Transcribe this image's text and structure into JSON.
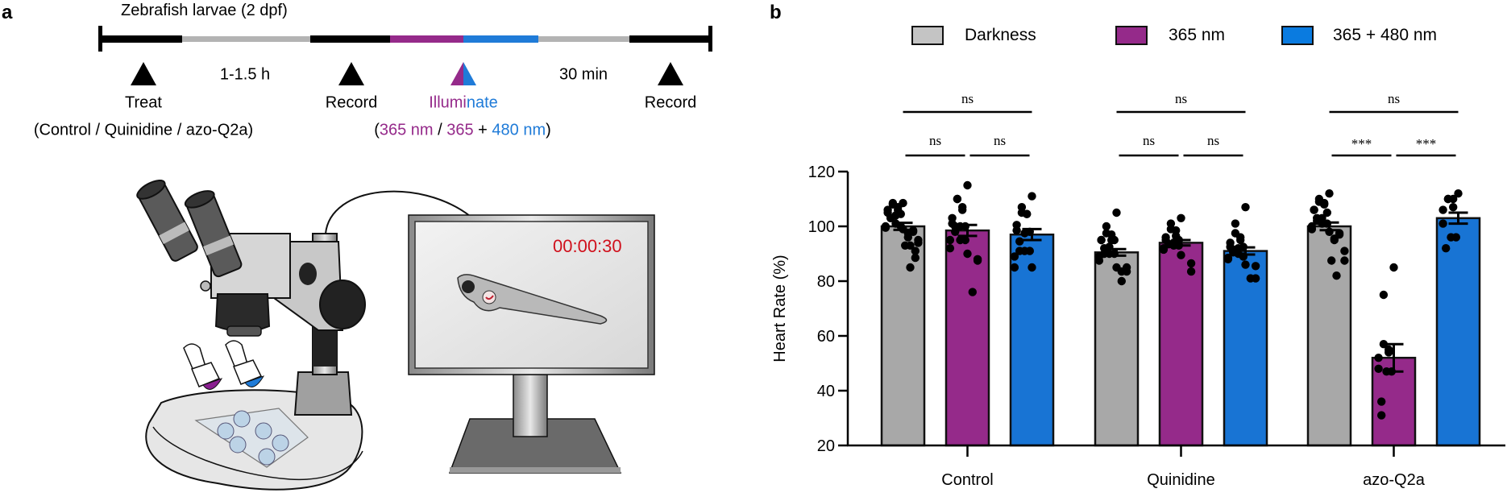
{
  "panel_a": {
    "label": "a",
    "title": "Zebrafish larvae (2 dpf)",
    "timeline_colors": {
      "black": "#000000",
      "gray": "#b3b3b3",
      "purple": "#952a8a",
      "blue": "#1f7bd8"
    },
    "duration_1": "1-1.5 h",
    "duration_2": "30 min",
    "step_treat": "Treat",
    "step_record_1": "Record",
    "step_illuminate_a": "Illumi",
    "step_illuminate_b": "nate",
    "step_record_2": "Record",
    "treat_detail": "(Control / Quinidine / azo-Q2a)",
    "illum_detail": {
      "open": "(",
      "p1": "365 nm",
      "sep": " / ",
      "p2": "365",
      "plus": " + ",
      "p3": "480 nm",
      "close": ")"
    },
    "monitor_timer": "00:00:30",
    "timer_color": "#d0101c"
  },
  "panel_b": {
    "label": "b"
  },
  "chart_data": {
    "type": "bar",
    "ylabel": "Heart Rate (%)",
    "ylim": [
      20,
      120
    ],
    "yticks": [
      "20",
      "40",
      "60",
      "80",
      "100",
      "120"
    ],
    "categories": [
      "Control",
      "Quinidine",
      "azo-Q2a"
    ],
    "legend_position": "top",
    "series": [
      {
        "name": "Darkness",
        "color": "#a8a8a8",
        "legend_color": "#c4c4c4",
        "means": [
          100,
          90.5,
          100
        ],
        "sem": [
          1.3,
          1.2,
          1.4
        ],
        "points": [
          [
            108.5,
            108.5,
            108,
            107,
            106,
            106,
            105,
            104.5,
            104,
            103,
            103,
            101,
            100,
            100,
            99.5,
            99,
            98.5,
            98,
            97.5,
            96,
            95,
            94,
            93,
            93,
            91,
            88.5,
            85
          ],
          [
            105,
            100,
            97.5,
            97,
            95,
            95,
            95,
            95,
            92.5,
            92,
            90,
            90,
            90,
            89,
            87.5,
            85,
            85,
            83.5,
            83.5,
            80
          ],
          [
            112,
            110,
            109,
            108.5,
            108,
            106,
            106,
            105,
            103,
            103,
            102,
            101,
            101,
            100,
            99,
            98,
            97.5,
            97,
            95.5,
            95,
            91,
            87.5,
            87.5,
            82
          ]
        ]
      },
      {
        "name": "365 nm",
        "color": "#952a8a",
        "legend_color": "#952a8a",
        "means": [
          98.5,
          94,
          52
        ],
        "sem": [
          2.0,
          1.0,
          5.0
        ],
        "points": [
          [
            115,
            110,
            110,
            107,
            106,
            103,
            101,
            100,
            100,
            100,
            98,
            95,
            95,
            95,
            92,
            90,
            88,
            87.5,
            76
          ],
          [
            103,
            101,
            99,
            98.5,
            96.5,
            96,
            95,
            95,
            94,
            93.5,
            93.5,
            93,
            93,
            92,
            91.5,
            89.5,
            86.5,
            83.5
          ],
          [
            85,
            75,
            57,
            55,
            54,
            52,
            48,
            47,
            47,
            36,
            31
          ]
        ]
      },
      {
        "name": "365 + 480 nm",
        "color": "#1874d4",
        "legend_color": "#0a7be0",
        "means": [
          97,
          91,
          103
        ],
        "sem": [
          2.0,
          1.3,
          2.0
        ],
        "points": [
          [
            111,
            107,
            105,
            104.5,
            104.5,
            100.5,
            98.5,
            98,
            97.5,
            94.5,
            91,
            91,
            91,
            89,
            85,
            85
          ],
          [
            107,
            101,
            97.5,
            96,
            95,
            94,
            92.5,
            92.5,
            92,
            91.5,
            90.5,
            90,
            89,
            88.5,
            88,
            86,
            85.5,
            81,
            81
          ],
          [
            112,
            110,
            110,
            110,
            107,
            106,
            101,
            96,
            96,
            92
          ]
        ]
      }
    ],
    "significance": [
      {
        "group": 0,
        "from": 0,
        "to": 2,
        "label": "ns",
        "level": "top"
      },
      {
        "group": 0,
        "from": 0,
        "to": 1,
        "label": "ns",
        "level": "low"
      },
      {
        "group": 0,
        "from": 1,
        "to": 2,
        "label": "ns",
        "level": "low"
      },
      {
        "group": 1,
        "from": 0,
        "to": 2,
        "label": "ns",
        "level": "top"
      },
      {
        "group": 1,
        "from": 0,
        "to": 1,
        "label": "ns",
        "level": "low"
      },
      {
        "group": 1,
        "from": 1,
        "to": 2,
        "label": "ns",
        "level": "low"
      },
      {
        "group": 2,
        "from": 0,
        "to": 2,
        "label": "ns",
        "level": "top"
      },
      {
        "group": 2,
        "from": 0,
        "to": 1,
        "label": "***",
        "level": "low"
      },
      {
        "group": 2,
        "from": 1,
        "to": 2,
        "label": "***",
        "level": "low"
      }
    ]
  }
}
